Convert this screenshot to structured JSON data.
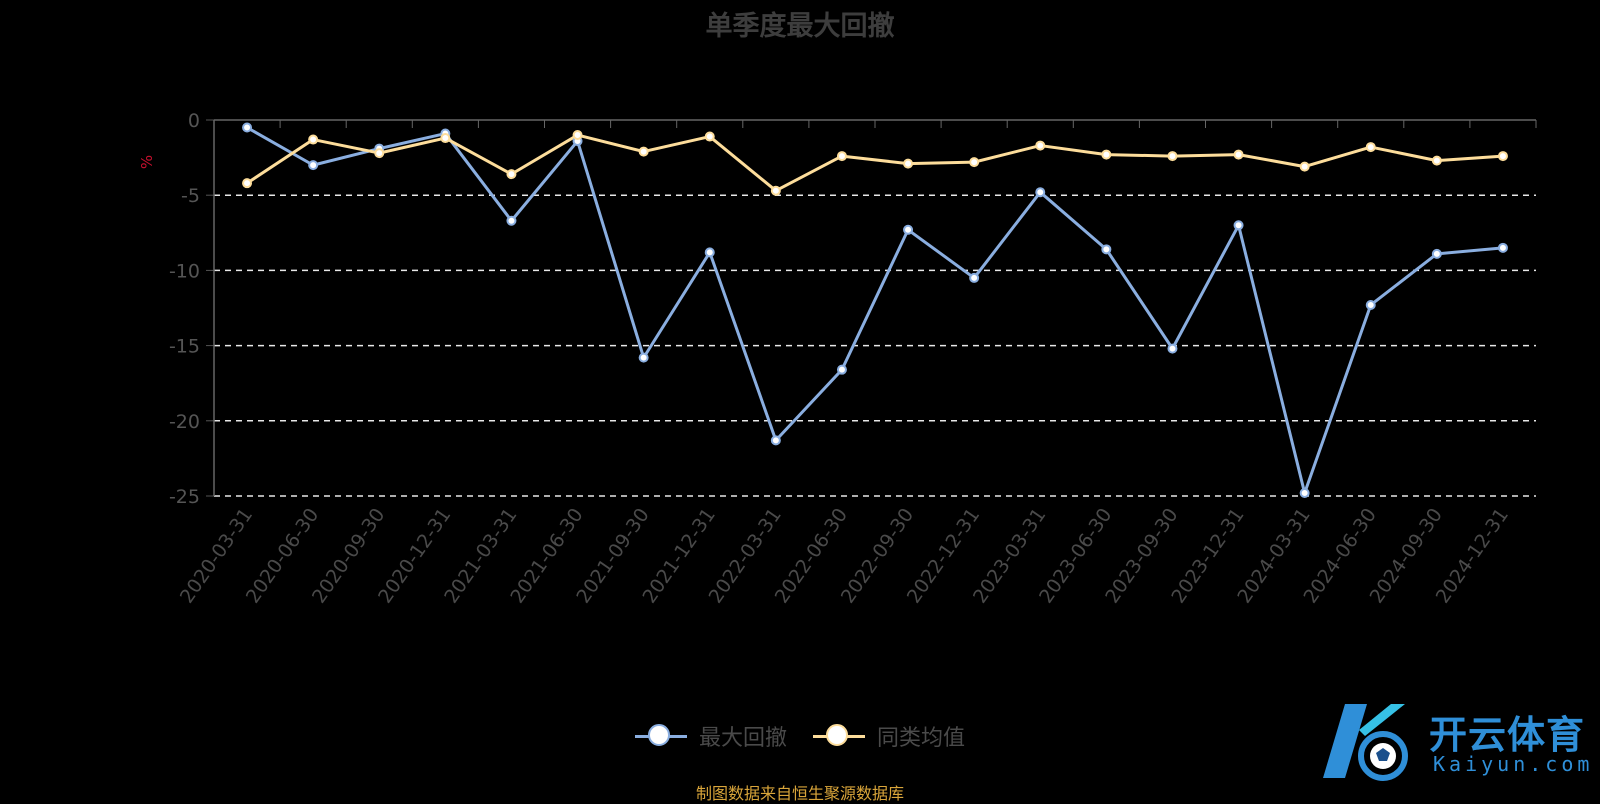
{
  "chart_data": {
    "type": "line",
    "title": "单季度最大回撤",
    "ylabel": "%",
    "xlabel": "",
    "ylim": [
      -25,
      0
    ],
    "y_ticks": [
      0,
      -5,
      -10,
      -15,
      -20,
      -25
    ],
    "grid": true,
    "legend_position": "bottom-center",
    "categories": [
      "2020-03-31",
      "2020-06-30",
      "2020-09-30",
      "2020-12-31",
      "2021-03-31",
      "2021-06-30",
      "2021-09-30",
      "2021-12-31",
      "2022-03-31",
      "2022-06-30",
      "2022-09-30",
      "2022-12-31",
      "2023-03-31",
      "2023-06-30",
      "2023-09-30",
      "2023-12-31",
      "2024-03-31",
      "2024-06-30",
      "2024-09-30",
      "2024-12-31"
    ],
    "series": [
      {
        "name": "最大回撤",
        "color": "#8aaee0",
        "values": [
          -0.5,
          -3.0,
          -1.9,
          -0.9,
          -6.7,
          -1.4,
          -15.8,
          -8.8,
          -21.3,
          -16.6,
          -7.3,
          -10.5,
          -4.8,
          -8.6,
          -15.2,
          -7.0,
          -24.8,
          -12.3,
          -8.9,
          -8.5
        ]
      },
      {
        "name": "同类均值",
        "color": "#fddd9b",
        "values": [
          -4.2,
          -1.3,
          -2.2,
          -1.2,
          -3.6,
          -1.0,
          -2.1,
          -1.1,
          -4.7,
          -2.4,
          -2.9,
          -2.8,
          -1.7,
          -2.3,
          -2.4,
          -2.3,
          -3.1,
          -1.8,
          -2.7,
          -2.4
        ]
      }
    ]
  },
  "footer": "制图数据来自恒生聚源数据库",
  "logo": {
    "cn": "开云体育",
    "en": "Kaiyun.com",
    "color": "#2f8fd8"
  }
}
